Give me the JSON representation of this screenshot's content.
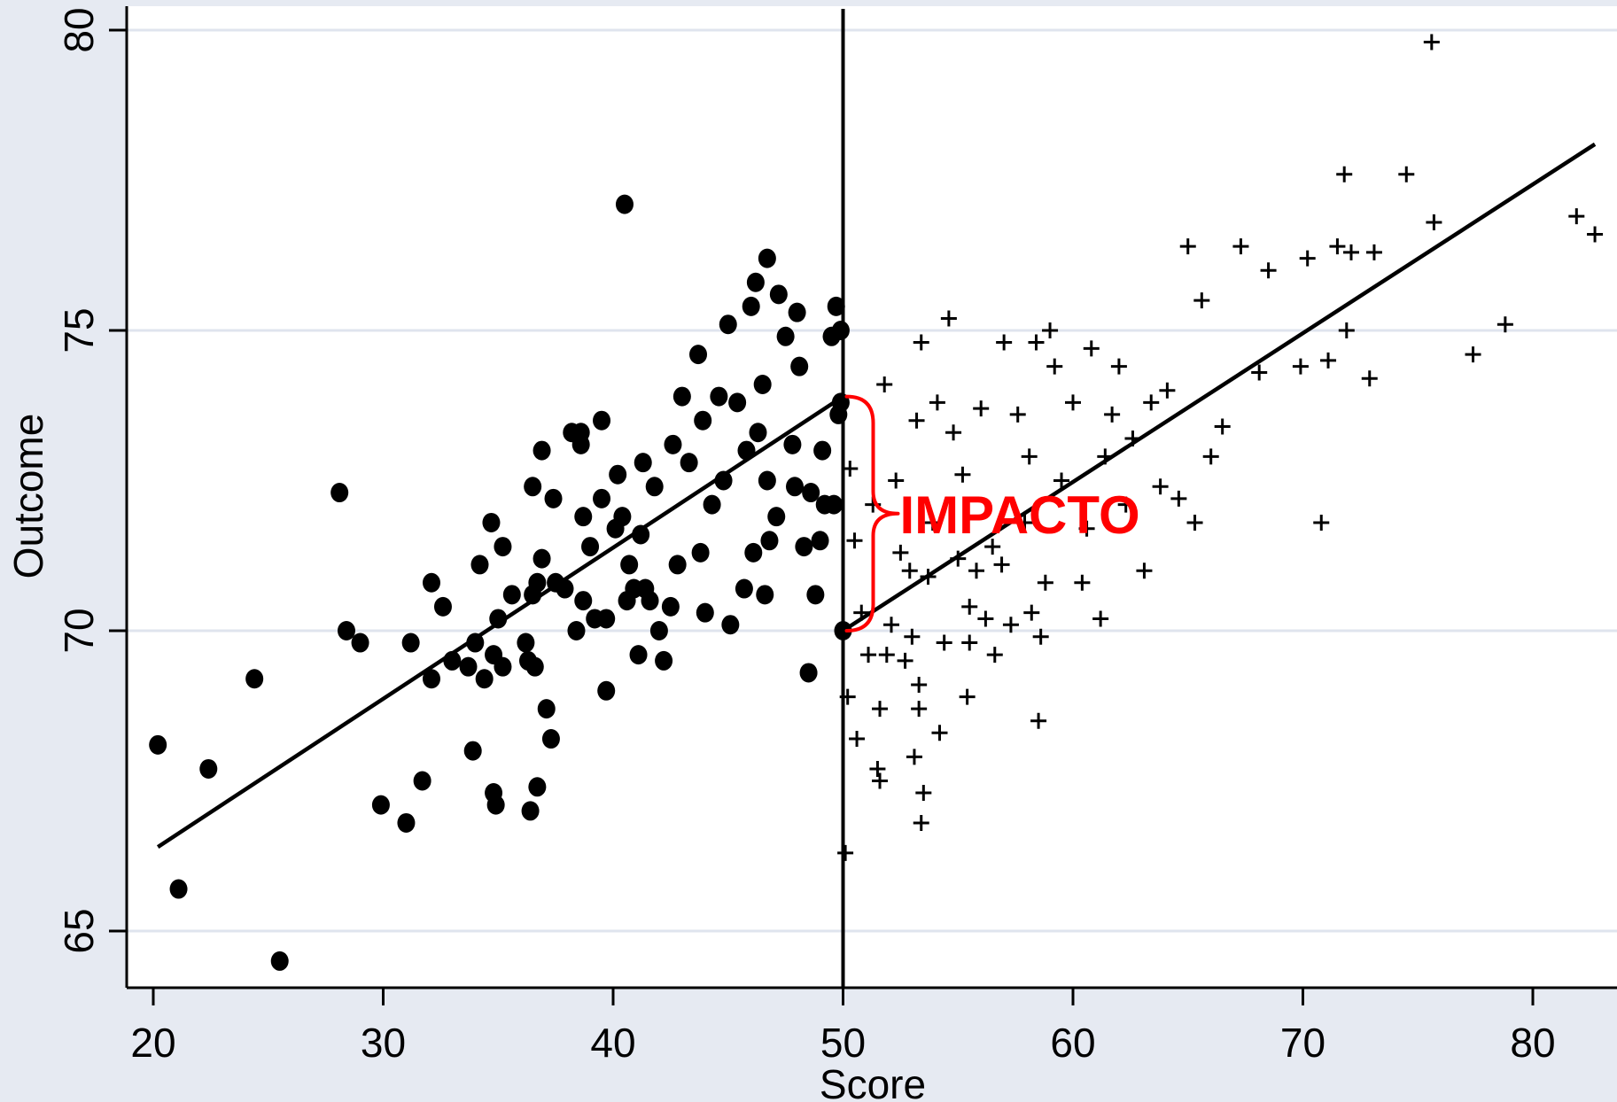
{
  "chart_data": {
    "type": "scatter",
    "title": "",
    "xlabel": "Score",
    "ylabel": "Outcome",
    "xlim": [
      19,
      83
    ],
    "ylim": [
      64,
      80.4
    ],
    "xticks": [
      20,
      30,
      40,
      50,
      60,
      70,
      80
    ],
    "yticks": [
      65,
      70,
      75,
      80
    ],
    "xtick_labels": [
      "20",
      "30",
      "40",
      "50",
      "60",
      "70",
      "80"
    ],
    "ytick_labels": [
      "65",
      "70",
      "75",
      "80"
    ],
    "grid": "horizontal",
    "cutoff": 50,
    "annotation": "IMPACTO",
    "colors": {
      "page": "#e6eaf2",
      "plot": "#ffffff",
      "grid": "#dfe4ee",
      "marks": "#000000",
      "annotation": "#ff0000"
    },
    "fit_lines": [
      {
        "x": [
          20.2,
          50
        ],
        "y": [
          66.4,
          73.9
        ]
      },
      {
        "x": [
          50,
          82.7
        ],
        "y": [
          70.0,
          78.1
        ]
      }
    ],
    "series": [
      {
        "marker": "circle",
        "points": [
          [
            20.2,
            68.1
          ],
          [
            21.1,
            65.7
          ],
          [
            22.4,
            67.7
          ],
          [
            24.4,
            69.2
          ],
          [
            25.5,
            64.5
          ],
          [
            28.1,
            72.3
          ],
          [
            28.4,
            70.0
          ],
          [
            29.0,
            69.8
          ],
          [
            29.9,
            67.1
          ],
          [
            31.0,
            66.8
          ],
          [
            31.2,
            69.8
          ],
          [
            31.7,
            67.5
          ],
          [
            32.1,
            69.2
          ],
          [
            32.1,
            70.8
          ],
          [
            32.6,
            70.4
          ],
          [
            33.0,
            69.5
          ],
          [
            33.7,
            69.4
          ],
          [
            33.9,
            68.0
          ],
          [
            34.0,
            69.8
          ],
          [
            34.2,
            71.1
          ],
          [
            34.4,
            69.2
          ],
          [
            34.7,
            71.8
          ],
          [
            34.8,
            69.6
          ],
          [
            34.8,
            67.3
          ],
          [
            34.9,
            67.1
          ],
          [
            35.0,
            70.2
          ],
          [
            35.2,
            69.4
          ],
          [
            35.2,
            71.4
          ],
          [
            35.6,
            70.6
          ],
          [
            36.2,
            69.8
          ],
          [
            36.3,
            69.5
          ],
          [
            36.4,
            67.0
          ],
          [
            36.5,
            70.6
          ],
          [
            36.6,
            69.4
          ],
          [
            36.7,
            67.4
          ],
          [
            36.5,
            72.4
          ],
          [
            36.7,
            70.8
          ],
          [
            36.9,
            71.2
          ],
          [
            36.9,
            73.0
          ],
          [
            37.1,
            68.7
          ],
          [
            37.3,
            68.2
          ],
          [
            37.4,
            72.2
          ],
          [
            37.5,
            70.8
          ],
          [
            37.9,
            70.7
          ],
          [
            38.2,
            73.3
          ],
          [
            38.4,
            70.0
          ],
          [
            38.6,
            73.3
          ],
          [
            38.6,
            73.1
          ],
          [
            38.7,
            71.9
          ],
          [
            38.7,
            70.5
          ],
          [
            39.0,
            71.4
          ],
          [
            39.2,
            70.2
          ],
          [
            39.5,
            72.2
          ],
          [
            39.5,
            73.5
          ],
          [
            39.7,
            69.0
          ],
          [
            39.7,
            70.2
          ],
          [
            40.1,
            71.7
          ],
          [
            40.2,
            72.6
          ],
          [
            40.4,
            71.9
          ],
          [
            40.5,
            77.1
          ],
          [
            40.6,
            70.5
          ],
          [
            40.7,
            71.1
          ],
          [
            40.9,
            70.7
          ],
          [
            41.1,
            69.6
          ],
          [
            41.2,
            71.6
          ],
          [
            41.3,
            72.8
          ],
          [
            41.4,
            70.7
          ],
          [
            41.6,
            70.5
          ],
          [
            41.8,
            72.4
          ],
          [
            42.0,
            70.0
          ],
          [
            42.2,
            69.5
          ],
          [
            42.5,
            70.4
          ],
          [
            42.6,
            73.1
          ],
          [
            42.8,
            71.1
          ],
          [
            43.0,
            73.9
          ],
          [
            43.3,
            72.8
          ],
          [
            43.7,
            74.6
          ],
          [
            43.8,
            71.3
          ],
          [
            43.9,
            73.5
          ],
          [
            44.0,
            70.3
          ],
          [
            44.3,
            72.1
          ],
          [
            44.6,
            73.9
          ],
          [
            44.8,
            72.5
          ],
          [
            45.0,
            75.1
          ],
          [
            45.1,
            70.1
          ],
          [
            45.4,
            73.8
          ],
          [
            45.7,
            70.7
          ],
          [
            45.8,
            73.0
          ],
          [
            46.0,
            75.4
          ],
          [
            46.1,
            71.3
          ],
          [
            46.2,
            75.8
          ],
          [
            46.3,
            73.3
          ],
          [
            46.5,
            74.1
          ],
          [
            46.6,
            70.6
          ],
          [
            46.7,
            72.5
          ],
          [
            46.7,
            76.2
          ],
          [
            46.8,
            71.5
          ],
          [
            47.1,
            71.9
          ],
          [
            47.2,
            75.6
          ],
          [
            47.5,
            74.9
          ],
          [
            47.8,
            73.1
          ],
          [
            47.9,
            72.4
          ],
          [
            48.0,
            75.3
          ],
          [
            48.1,
            74.4
          ],
          [
            48.3,
            71.4
          ],
          [
            48.5,
            69.3
          ],
          [
            48.6,
            72.3
          ],
          [
            48.8,
            70.6
          ],
          [
            49.0,
            71.5
          ],
          [
            49.1,
            73.0
          ],
          [
            49.2,
            72.1
          ],
          [
            49.5,
            74.9
          ],
          [
            49.6,
            72.1
          ],
          [
            49.7,
            75.4
          ],
          [
            49.8,
            73.6
          ],
          [
            49.9,
            73.8
          ],
          [
            49.9,
            75.0
          ],
          [
            50.0,
            70.0
          ]
        ]
      },
      {
        "marker": "plus",
        "points": [
          [
            50.1,
            66.3
          ],
          [
            50.2,
            68.9
          ],
          [
            50.3,
            72.7
          ],
          [
            50.5,
            71.5
          ],
          [
            50.6,
            68.2
          ],
          [
            50.8,
            70.3
          ],
          [
            51.1,
            69.6
          ],
          [
            51.3,
            72.1
          ],
          [
            51.5,
            67.7
          ],
          [
            51.6,
            67.5
          ],
          [
            51.6,
            68.7
          ],
          [
            51.8,
            74.1
          ],
          [
            51.9,
            69.6
          ],
          [
            52.1,
            70.1
          ],
          [
            52.3,
            72.5
          ],
          [
            52.5,
            71.3
          ],
          [
            52.7,
            69.5
          ],
          [
            52.9,
            71.0
          ],
          [
            53.0,
            69.9
          ],
          [
            53.1,
            67.9
          ],
          [
            53.2,
            73.5
          ],
          [
            53.3,
            69.1
          ],
          [
            53.3,
            68.7
          ],
          [
            53.4,
            74.8
          ],
          [
            53.4,
            66.8
          ],
          [
            53.5,
            67.3
          ],
          [
            53.7,
            70.9
          ],
          [
            53.9,
            71.8
          ],
          [
            54.1,
            73.8
          ],
          [
            54.2,
            68.3
          ],
          [
            54.4,
            69.8
          ],
          [
            54.6,
            75.2
          ],
          [
            54.8,
            73.3
          ],
          [
            55.0,
            71.2
          ],
          [
            55.2,
            72.6
          ],
          [
            55.4,
            68.9
          ],
          [
            55.5,
            69.8
          ],
          [
            55.5,
            70.4
          ],
          [
            55.8,
            71.0
          ],
          [
            56.0,
            73.7
          ],
          [
            56.2,
            70.2
          ],
          [
            56.5,
            71.4
          ],
          [
            56.6,
            69.6
          ],
          [
            56.9,
            71.1
          ],
          [
            57.0,
            74.8
          ],
          [
            57.3,
            70.1
          ],
          [
            57.6,
            73.6
          ],
          [
            57.9,
            71.8
          ],
          [
            58.1,
            72.9
          ],
          [
            58.2,
            70.3
          ],
          [
            58.4,
            74.8
          ],
          [
            58.5,
            68.5
          ],
          [
            58.6,
            69.9
          ],
          [
            58.8,
            70.8
          ],
          [
            59.0,
            75.0
          ],
          [
            59.2,
            74.4
          ],
          [
            59.5,
            72.5
          ],
          [
            60.0,
            73.8
          ],
          [
            60.4,
            70.8
          ],
          [
            60.6,
            71.7
          ],
          [
            60.8,
            74.7
          ],
          [
            61.2,
            70.2
          ],
          [
            61.4,
            72.9
          ],
          [
            61.7,
            73.6
          ],
          [
            62.0,
            74.4
          ],
          [
            62.3,
            72.1
          ],
          [
            62.6,
            73.2
          ],
          [
            63.1,
            71.0
          ],
          [
            63.4,
            73.8
          ],
          [
            63.8,
            72.4
          ],
          [
            64.1,
            74.0
          ],
          [
            64.6,
            72.2
          ],
          [
            65.0,
            76.4
          ],
          [
            65.3,
            71.8
          ],
          [
            65.6,
            75.5
          ],
          [
            66.0,
            72.9
          ],
          [
            66.5,
            73.4
          ],
          [
            67.3,
            76.4
          ],
          [
            68.1,
            74.3
          ],
          [
            68.5,
            76.0
          ],
          [
            69.9,
            74.4
          ],
          [
            70.2,
            76.2
          ],
          [
            70.8,
            71.8
          ],
          [
            71.1,
            74.5
          ],
          [
            71.5,
            76.4
          ],
          [
            71.8,
            77.6
          ],
          [
            71.9,
            75.0
          ],
          [
            72.1,
            76.3
          ],
          [
            72.9,
            74.2
          ],
          [
            73.1,
            76.3
          ],
          [
            74.5,
            77.6
          ],
          [
            75.6,
            79.8
          ],
          [
            75.7,
            76.8
          ],
          [
            77.4,
            74.6
          ],
          [
            78.8,
            75.1
          ],
          [
            81.9,
            76.9
          ],
          [
            82.7,
            76.6
          ]
        ]
      }
    ]
  }
}
